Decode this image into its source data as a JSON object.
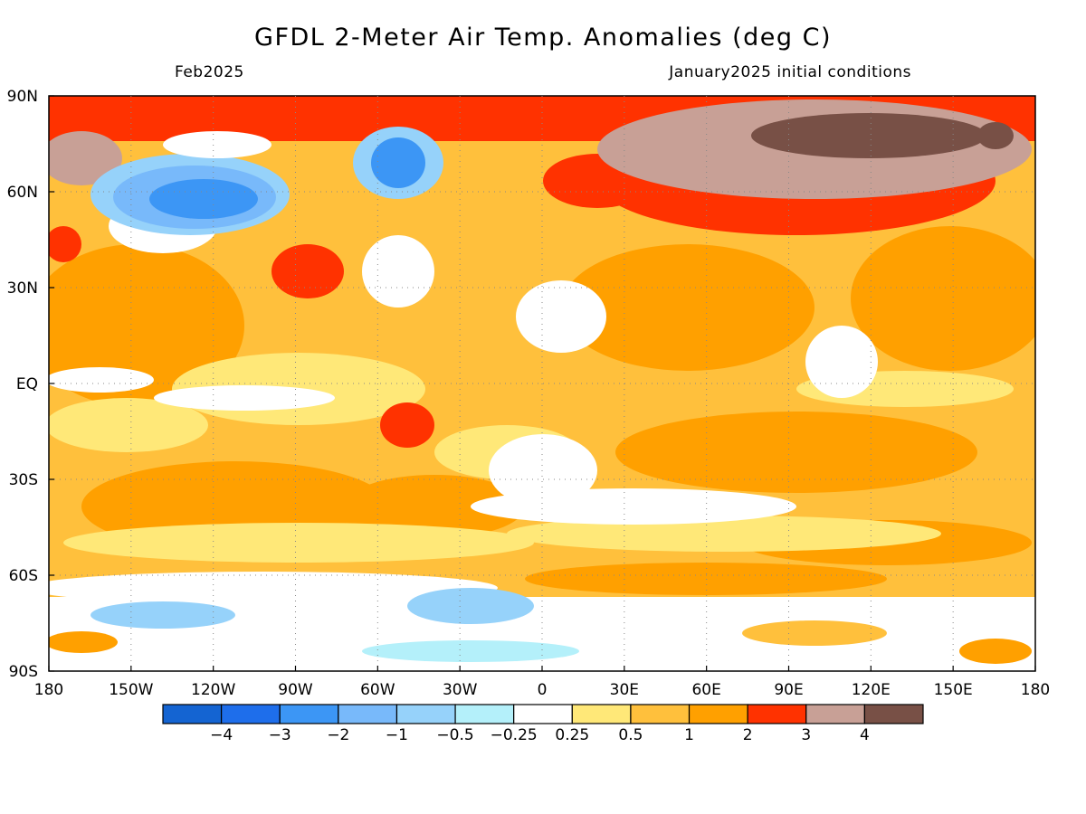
{
  "title": "GFDL 2-Meter Air Temp. Anomalies (deg C)",
  "subtitle_left": "Feb2025",
  "subtitle_right": "January2025 initial conditions",
  "lat_labels": [
    "90N",
    "60N",
    "30N",
    "EQ",
    "30S",
    "60S",
    "90S"
  ],
  "lon_labels": [
    "180",
    "150W",
    "120W",
    "90W",
    "60W",
    "30W",
    "0",
    "30E",
    "60E",
    "90E",
    "120E",
    "150E",
    "180"
  ],
  "colorbar": {
    "colors": [
      "#1464d2",
      "#1e6eeb",
      "#3c96f5",
      "#78b9fa",
      "#96d2fa",
      "#b4f0fa",
      "#ffffff",
      "#ffe878",
      "#ffc03c",
      "#ffa000",
      "#ff3200",
      "#c8a096",
      "#785046"
    ],
    "labels": [
      "−4",
      "−3",
      "−2",
      "−1",
      "−0.5",
      "−0.25",
      "0.25",
      "0.5",
      "1",
      "2",
      "3",
      "4"
    ]
  }
}
